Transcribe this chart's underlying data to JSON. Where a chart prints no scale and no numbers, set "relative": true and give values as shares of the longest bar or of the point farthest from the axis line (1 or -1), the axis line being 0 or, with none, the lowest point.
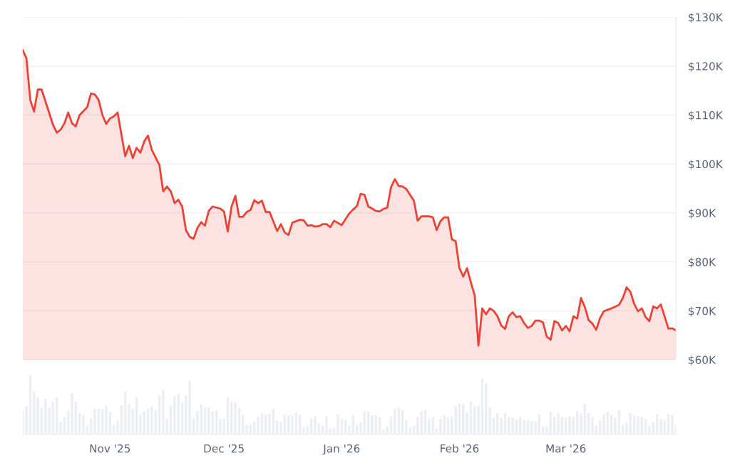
{
  "chart_data": [
    {
      "type": "area",
      "ylim": [
        60,
        130
      ],
      "xlim": [
        "2025-10-09",
        "2026-03-30"
      ],
      "yticks": [
        {
          "value": 60,
          "label": "$60K"
        },
        {
          "value": 70,
          "label": "$70K"
        },
        {
          "value": 80,
          "label": "$80K"
        },
        {
          "value": 90,
          "label": "$90K"
        },
        {
          "value": 100,
          "label": "$100K"
        },
        {
          "value": 110,
          "label": "$110K"
        },
        {
          "value": 120,
          "label": "$120K"
        },
        {
          "value": 130,
          "label": "$130K"
        }
      ],
      "grid": "y",
      "tick_labels": "y",
      "legend": false,
      "series": [
        {
          "color": "#ea4335",
          "x": [
            "2025-10-09",
            "2025-10-10",
            "2025-10-11",
            "2025-10-12",
            "2025-10-13",
            "2025-10-14",
            "2025-10-17",
            "2025-10-18",
            "2025-10-19",
            "2025-10-20",
            "2025-10-21",
            "2025-10-22",
            "2025-10-23",
            "2025-10-24",
            "2025-10-26",
            "2025-10-27",
            "2025-10-28",
            "2025-10-29",
            "2025-10-30",
            "2025-10-31",
            "2025-11-01",
            "2025-11-02",
            "2025-11-03",
            "2025-11-05",
            "2025-11-06",
            "2025-11-07",
            "2025-11-08",
            "2025-11-09",
            "2025-11-10",
            "2025-11-11",
            "2025-11-12",
            "2025-11-14",
            "2025-11-15",
            "2025-11-16",
            "2025-11-17",
            "2025-11-18",
            "2025-11-19",
            "2025-11-20",
            "2025-11-21",
            "2025-11-22",
            "2025-11-23",
            "2025-11-24",
            "2025-11-25",
            "2025-11-26",
            "2025-11-27",
            "2025-11-28",
            "2025-11-30",
            "2025-12-01",
            "2025-12-02",
            "2025-12-03",
            "2025-12-04",
            "2025-12-05",
            "2025-12-06",
            "2025-12-07",
            "2025-12-08",
            "2025-12-09",
            "2025-12-10",
            "2025-12-11",
            "2025-12-12",
            "2025-12-13",
            "2025-12-15",
            "2025-12-16",
            "2025-12-17",
            "2025-12-18",
            "2025-12-19",
            "2025-12-21",
            "2025-12-22",
            "2025-12-23",
            "2025-12-24",
            "2025-12-25",
            "2025-12-26",
            "2025-12-27",
            "2025-12-28",
            "2025-12-29",
            "2025-12-30",
            "2026-01-01",
            "2026-01-03",
            "2026-01-04",
            "2026-01-05",
            "2026-01-06",
            "2026-01-07",
            "2026-01-08",
            "2026-01-09",
            "2026-01-10",
            "2026-01-11",
            "2026-01-12",
            "2026-01-13",
            "2026-01-14",
            "2026-01-15",
            "2026-01-16",
            "2026-01-17",
            "2026-01-18",
            "2026-01-19",
            "2026-01-20",
            "2026-01-21",
            "2026-01-22",
            "2026-01-24",
            "2026-01-25",
            "2026-01-26",
            "2026-01-27",
            "2026-01-28",
            "2026-01-29",
            "2026-01-30",
            "2026-01-31",
            "2026-02-01",
            "2026-02-02",
            "2026-02-03",
            "2026-02-04",
            "2026-02-05",
            "2026-02-06",
            "2026-02-07",
            "2026-02-08",
            "2026-02-09",
            "2026-02-10",
            "2026-02-11",
            "2026-02-12",
            "2026-02-13",
            "2026-02-14",
            "2026-02-15",
            "2026-02-16",
            "2026-02-17",
            "2026-02-18",
            "2026-02-19",
            "2026-02-20",
            "2026-02-21",
            "2026-02-22",
            "2026-02-23",
            "2026-02-24",
            "2026-02-25",
            "2026-02-26",
            "2026-02-27",
            "2026-02-28",
            "2026-03-01",
            "2026-03-02",
            "2026-03-03",
            "2026-03-04",
            "2026-03-05",
            "2026-03-06",
            "2026-03-07",
            "2026-03-08",
            "2026-03-09",
            "2026-03-10",
            "2026-03-11",
            "2026-03-13",
            "2026-03-15",
            "2026-03-16",
            "2026-03-17",
            "2026-03-18",
            "2026-03-19",
            "2026-03-20",
            "2026-03-21",
            "2026-03-22",
            "2026-03-23",
            "2026-03-24",
            "2026-03-25",
            "2026-03-26",
            "2026-03-28",
            "2026-03-29",
            "2026-03-30"
          ],
          "values": [
            123.3,
            121.6,
            113.1,
            110.7,
            115.2,
            115.2,
            108.0,
            106.4,
            107.0,
            108.3,
            110.5,
            108.3,
            107.7,
            110.0,
            111.6,
            114.4,
            114.2,
            113.1,
            110.0,
            108.2,
            109.3,
            109.7,
            110.5,
            101.6,
            103.7,
            101.2,
            103.3,
            102.3,
            104.6,
            105.8,
            102.9,
            99.8,
            94.4,
            95.4,
            94.4,
            92.0,
            92.7,
            91.3,
            86.5,
            85.1,
            84.7,
            86.9,
            88.1,
            87.4,
            90.4,
            91.3,
            90.9,
            90.3,
            86.2,
            91.3,
            93.5,
            89.2,
            89.2,
            90.2,
            90.6,
            92.6,
            92.0,
            92.5,
            90.2,
            90.2,
            86.3,
            87.7,
            86.0,
            85.5,
            88.0,
            88.6,
            88.5,
            87.4,
            87.5,
            87.2,
            87.3,
            87.7,
            87.7,
            87.1,
            88.4,
            87.5,
            89.9,
            90.7,
            91.4,
            93.9,
            93.7,
            91.3,
            90.9,
            90.4,
            90.3,
            90.8,
            91.1,
            95.3,
            96.9,
            95.5,
            95.4,
            94.9,
            93.7,
            92.5,
            88.4,
            89.3,
            89.3,
            89.1,
            86.5,
            88.3,
            89.1,
            89.1,
            84.6,
            84.2,
            78.7,
            77.0,
            78.7,
            75.8,
            73.2,
            62.9,
            70.5,
            69.3,
            70.5,
            70.0,
            68.9,
            67.0,
            66.3,
            68.9,
            69.7,
            68.7,
            68.9,
            67.5,
            66.5,
            66.9,
            68.0,
            68.0,
            67.6,
            64.7,
            64.1,
            67.9,
            67.5,
            66.0,
            66.9,
            65.8,
            68.9,
            68.4,
            72.6,
            70.8,
            68.1,
            67.4,
            66.1,
            68.5,
            69.9,
            70.5,
            71.2,
            72.6,
            74.8,
            73.9,
            71.4,
            69.9,
            70.5,
            68.7,
            67.9,
            70.9,
            70.5,
            71.3,
            66.4,
            66.4,
            66.0
          ]
        }
      ]
    },
    {
      "type": "bar",
      "relative": true,
      "xlim": [
        "2025-10-09",
        "2026-03-30"
      ],
      "xticks": [
        {
          "value": "2025-11-01",
          "label": "Nov '25"
        },
        {
          "value": "2025-12-01",
          "label": "Dec '25"
        },
        {
          "value": "2026-01-01",
          "label": "Jan '26"
        },
        {
          "value": "2026-02-01",
          "label": "Feb '26"
        },
        {
          "value": "2026-03-01",
          "label": "Mar '26"
        }
      ],
      "tick_labels": "x",
      "grid": false,
      "legend": false,
      "series": [
        {
          "color": "#eceef3",
          "x": [
            "2025-10-09",
            "2025-10-10",
            "2025-10-11",
            "2025-10-12",
            "2025-10-13",
            "2025-10-14",
            "2025-10-15",
            "2025-10-16",
            "2025-10-17",
            "2025-10-18",
            "2025-10-19",
            "2025-10-20",
            "2025-10-21",
            "2025-10-22",
            "2025-10-23",
            "2025-10-24",
            "2025-10-25",
            "2025-10-26",
            "2025-10-27",
            "2025-10-28",
            "2025-10-29",
            "2025-10-30",
            "2025-10-31",
            "2025-11-01",
            "2025-11-02",
            "2025-11-03",
            "2025-11-04",
            "2025-11-05",
            "2025-11-06",
            "2025-11-07",
            "2025-11-08",
            "2025-11-09",
            "2025-11-10",
            "2025-11-11",
            "2025-11-12",
            "2025-11-13",
            "2025-11-14",
            "2025-11-15",
            "2025-11-16",
            "2025-11-17",
            "2025-11-18",
            "2025-11-19",
            "2025-11-20",
            "2025-11-21",
            "2025-11-22",
            "2025-11-23",
            "2025-11-24",
            "2025-11-25",
            "2025-11-26",
            "2025-11-27",
            "2025-11-28",
            "2025-11-29",
            "2025-11-30",
            "2025-12-01",
            "2025-12-02",
            "2025-12-03",
            "2025-12-04",
            "2025-12-05",
            "2025-12-06",
            "2025-12-07",
            "2025-12-08",
            "2025-12-09",
            "2025-12-10",
            "2025-12-11",
            "2025-12-12",
            "2025-12-13",
            "2025-12-14",
            "2025-12-15",
            "2025-12-16",
            "2025-12-17",
            "2025-12-18",
            "2025-12-19",
            "2025-12-20",
            "2025-12-21",
            "2025-12-22",
            "2025-12-23",
            "2025-12-24",
            "2025-12-25",
            "2025-12-26",
            "2025-12-27",
            "2025-12-28",
            "2025-12-29",
            "2025-12-30",
            "2025-12-31",
            "2026-01-01",
            "2026-01-02",
            "2026-01-03",
            "2026-01-04",
            "2026-01-05",
            "2026-01-06",
            "2026-01-07",
            "2026-01-08",
            "2026-01-09",
            "2026-01-10",
            "2026-01-11",
            "2026-01-12",
            "2026-01-13",
            "2026-01-14",
            "2026-01-15",
            "2026-01-16",
            "2026-01-17",
            "2026-01-18",
            "2026-01-19",
            "2026-01-20",
            "2026-01-21",
            "2026-01-22",
            "2026-01-23",
            "2026-01-24",
            "2026-01-25",
            "2026-01-26",
            "2026-01-27",
            "2026-01-28",
            "2026-01-29",
            "2026-01-30",
            "2026-01-31",
            "2026-02-01",
            "2026-02-02",
            "2026-02-03",
            "2026-02-04",
            "2026-02-05",
            "2026-02-06",
            "2026-02-07",
            "2026-02-08",
            "2026-02-09",
            "2026-02-10",
            "2026-02-11",
            "2026-02-12",
            "2026-02-13",
            "2026-02-14",
            "2026-02-15",
            "2026-02-16",
            "2026-02-17",
            "2026-02-18",
            "2026-02-19",
            "2026-02-20",
            "2026-02-21",
            "2026-02-22",
            "2026-02-23",
            "2026-02-24",
            "2026-02-25",
            "2026-02-26",
            "2026-02-27",
            "2026-02-28",
            "2026-03-01",
            "2026-03-02",
            "2026-03-03",
            "2026-03-04",
            "2026-03-05",
            "2026-03-06",
            "2026-03-07",
            "2026-03-08",
            "2026-03-09",
            "2026-03-10",
            "2026-03-11",
            "2026-03-12",
            "2026-03-13",
            "2026-03-14",
            "2026-03-15",
            "2026-03-16",
            "2026-03-17",
            "2026-03-18",
            "2026-03-19",
            "2026-03-20",
            "2026-03-21",
            "2026-03-22",
            "2026-03-23",
            "2026-03-24",
            "2026-03-25",
            "2026-03-26",
            "2026-03-27",
            "2026-03-28",
            "2026-03-29",
            "2026-03-30"
          ],
          "values": [
            0.41,
            0.47,
            1.0,
            0.72,
            0.62,
            0.45,
            0.6,
            0.45,
            0.55,
            0.62,
            0.21,
            0.29,
            0.39,
            0.7,
            0.55,
            0.36,
            0.32,
            0.14,
            0.27,
            0.43,
            0.43,
            0.43,
            0.48,
            0.38,
            0.16,
            0.23,
            0.49,
            0.72,
            0.51,
            0.43,
            0.62,
            0.33,
            0.39,
            0.43,
            0.47,
            0.41,
            0.66,
            0.75,
            0.26,
            0.48,
            0.64,
            0.68,
            0.54,
            0.66,
            0.9,
            0.27,
            0.39,
            0.51,
            0.45,
            0.45,
            0.39,
            0.41,
            0.26,
            0.26,
            0.62,
            0.54,
            0.54,
            0.45,
            0.33,
            0.16,
            0.16,
            0.21,
            0.29,
            0.36,
            0.33,
            0.34,
            0.43,
            0.23,
            0.21,
            0.33,
            0.32,
            0.32,
            0.37,
            0.33,
            0.11,
            0.14,
            0.27,
            0.3,
            0.19,
            0.14,
            0.3,
            0.1,
            0.11,
            0.34,
            0.26,
            0.24,
            0.14,
            0.33,
            0.16,
            0.2,
            0.39,
            0.38,
            0.32,
            0.32,
            0.29,
            0.08,
            0.13,
            0.3,
            0.43,
            0.45,
            0.4,
            0.24,
            0.11,
            0.14,
            0.29,
            0.39,
            0.41,
            0.26,
            0.29,
            0.1,
            0.26,
            0.33,
            0.29,
            0.3,
            0.47,
            0.52,
            0.51,
            0.37,
            0.55,
            0.48,
            0.48,
            0.94,
            0.86,
            0.45,
            0.28,
            0.36,
            0.28,
            0.36,
            0.29,
            0.28,
            0.25,
            0.29,
            0.25,
            0.24,
            0.22,
            0.22,
            0.34,
            0.13,
            0.13,
            0.38,
            0.29,
            0.36,
            0.29,
            0.28,
            0.3,
            0.29,
            0.39,
            0.35,
            0.52,
            0.36,
            0.29,
            0.15,
            0.23,
            0.34,
            0.38,
            0.32,
            0.28,
            0.4,
            0.16,
            0.19,
            0.36,
            0.32,
            0.3,
            0.3,
            0.26,
            0.14,
            0.2,
            0.34,
            0.26,
            0.23,
            0.34,
            0.32,
            0.15
          ]
        }
      ]
    }
  ]
}
